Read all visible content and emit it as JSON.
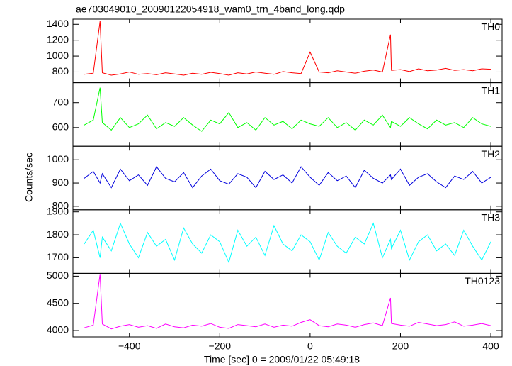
{
  "chart_data": {
    "type": "line",
    "title": "ae703049010_20090122054918_wam0_trn_4band_long.qdp",
    "x_label": "Time [sec] 0 = 2009/01/22 05:49:18",
    "y_label": "Counts/sec",
    "xlim": [
      -525,
      425
    ],
    "xticks": [
      {
        "value": -400,
        "label": "−400"
      },
      {
        "value": -200,
        "label": "−200"
      },
      0,
      200,
      400
    ],
    "x": [
      -500,
      -480,
      -465,
      -460,
      -440,
      -420,
      -400,
      -380,
      -360,
      -340,
      -320,
      -300,
      -280,
      -260,
      -240,
      -220,
      -200,
      -180,
      -160,
      -140,
      -120,
      -100,
      -80,
      -60,
      -40,
      -20,
      0,
      20,
      40,
      60,
      80,
      100,
      120,
      140,
      160,
      178,
      180,
      200,
      220,
      240,
      260,
      280,
      300,
      320,
      340,
      360,
      380,
      400
    ],
    "series": [
      {
        "name": "TH0",
        "color": "#ff0000",
        "ylim": [
          665,
          1465
        ],
        "yticks": [
          800,
          1000,
          1200,
          1400
        ],
        "values": [
          770,
          785,
          1440,
          790,
          760,
          775,
          800,
          770,
          780,
          765,
          790,
          775,
          760,
          785,
          770,
          795,
          780,
          760,
          790,
          775,
          800,
          785,
          770,
          805,
          790,
          780,
          1050,
          800,
          790,
          815,
          800,
          785,
          810,
          825,
          800,
          1270,
          820,
          830,
          805,
          840,
          815,
          825,
          845,
          820,
          830,
          815,
          840,
          835
        ]
      },
      {
        "name": "TH1",
        "color": "#00ff00",
        "ylim": [
          525,
          780
        ],
        "yticks": [
          600,
          700
        ],
        "values": [
          610,
          630,
          760,
          620,
          590,
          640,
          600,
          615,
          650,
          595,
          620,
          605,
          640,
          610,
          585,
          630,
          615,
          660,
          600,
          620,
          590,
          640,
          610,
          625,
          595,
          630,
          615,
          605,
          640,
          600,
          620,
          590,
          630,
          610,
          650,
          600,
          625,
          605,
          640,
          615,
          595,
          630,
          610,
          620,
          600,
          640,
          615,
          605
        ]
      },
      {
        "name": "TH2",
        "color": "#0000dd",
        "ylim": [
          785,
          1058
        ],
        "yticks": [
          800,
          900,
          1000
        ],
        "values": [
          920,
          950,
          900,
          940,
          880,
          960,
          910,
          935,
          890,
          970,
          920,
          905,
          945,
          880,
          930,
          960,
          910,
          895,
          940,
          925,
          880,
          950,
          915,
          935,
          900,
          970,
          925,
          890,
          945,
          910,
          930,
          880,
          955,
          920,
          900,
          935,
          915,
          960,
          890,
          925,
          940,
          905,
          880,
          930,
          915,
          950,
          900,
          925
        ]
      },
      {
        "name": "TH3",
        "color": "#00ffff",
        "ylim": [
          1632,
          1909
        ],
        "yticks": [
          1700,
          1800,
          1900
        ],
        "values": [
          1760,
          1820,
          1700,
          1790,
          1730,
          1850,
          1760,
          1700,
          1810,
          1750,
          1780,
          1690,
          1830,
          1760,
          1720,
          1800,
          1770,
          1680,
          1820,
          1750,
          1790,
          1710,
          1840,
          1760,
          1730,
          1800,
          1770,
          1690,
          1810,
          1750,
          1720,
          1790,
          1760,
          1850,
          1700,
          1780,
          1740,
          1820,
          1690,
          1770,
          1800,
          1730,
          1760,
          1710,
          1820,
          1750,
          1690,
          1770
        ]
      },
      {
        "name": "TH0123",
        "color": "#ff00ff",
        "ylim": [
          3883,
          5052
        ],
        "yticks": [
          4000,
          4500,
          5000
        ],
        "values": [
          4050,
          4100,
          5040,
          4120,
          4030,
          4080,
          4110,
          4060,
          4090,
          4040,
          4120,
          4070,
          4050,
          4100,
          4080,
          4130,
          4060,
          4040,
          4110,
          4090,
          4070,
          4120,
          4060,
          4100,
          4080,
          4150,
          4200,
          4090,
          4070,
          4120,
          4100,
          4060,
          4110,
          4140,
          4090,
          4600,
          4130,
          4100,
          4080,
          4150,
          4120,
          4090,
          4110,
          4160,
          4080,
          4100,
          4130,
          4090
        ]
      }
    ]
  }
}
